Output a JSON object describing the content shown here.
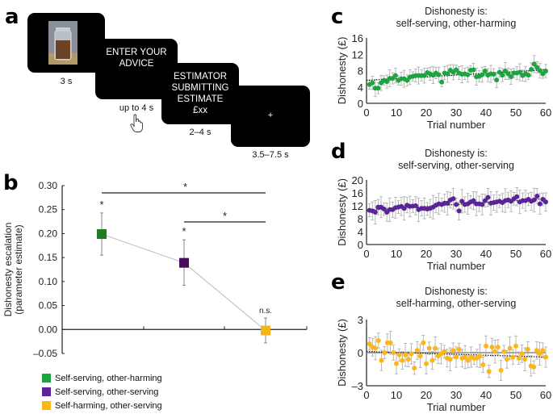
{
  "panel_a": {
    "letter": "a",
    "screens": [
      {
        "name": "jar-image",
        "text_lines": [],
        "duration": "3 s"
      },
      {
        "name": "enter-advice",
        "text_lines": [
          "ENTER YOUR",
          "ADVICE"
        ],
        "duration": "up to 4 s"
      },
      {
        "name": "estimator-submitting",
        "text_lines": [
          "ESTIMATOR",
          "SUBMITTING",
          "ESTIMATE",
          "£xx"
        ],
        "duration": "2–4 s"
      },
      {
        "name": "fixation",
        "text_lines": [
          "+"
        ],
        "duration": "3.5–7.5 s"
      }
    ],
    "icons": [
      "jar-photo-icon",
      "pointing-hand-icon"
    ]
  },
  "chart_data": [
    {
      "panel": "b",
      "type": "scatter",
      "title": "",
      "xlabel": "",
      "ylabel": "Dishonesty escalation (parameter estimate)",
      "ylim": [
        -0.05,
        0.3
      ],
      "yticks": [
        "0.30",
        "0.25",
        "0.20",
        "0.15",
        "0.10",
        "0.05",
        "0.00",
        "–0.05"
      ],
      "ytick_values": [
        0.3,
        0.25,
        0.2,
        0.15,
        0.1,
        0.05,
        0.0,
        -0.05
      ],
      "categories": [
        "Self-serving, other-harming",
        "Self-serving, other-serving",
        "Self-harming, other-serving"
      ],
      "values": [
        0.199,
        0.139,
        -0.002
      ],
      "error_low": [
        0.155,
        0.092,
        -0.028
      ],
      "error_high": [
        0.243,
        0.187,
        0.024
      ],
      "colors": [
        "#1e7d1e",
        "#4b0a5c",
        "#f5b41c"
      ],
      "legend_colors": [
        "#1aa541",
        "#5a2496",
        "#fbb61a"
      ],
      "point_labels": [
        "*",
        "*",
        "n.s."
      ],
      "significance_bars": [
        {
          "from": 0,
          "to": 2,
          "label": "*"
        },
        {
          "from": 1,
          "to": 2,
          "label": "*"
        }
      ],
      "legend": [
        "Self-serving, other-harming",
        "Self-serving, other-serving",
        "Self-harming, other-serving"
      ],
      "legend_position": "bottom-left",
      "grid": false
    },
    {
      "panel": "c",
      "type": "scatter",
      "title": "Dishonesty is:",
      "subtitle": "self-serving, other-harming",
      "xlabel": "Trial number",
      "ylabel": "Dishonesty (£)",
      "xlim": [
        0,
        60
      ],
      "ylim": [
        0,
        16
      ],
      "xticks": [
        "0",
        "10",
        "20",
        "30",
        "40",
        "50",
        "60"
      ],
      "yticks": [
        "16",
        "12",
        "8",
        "4",
        "0"
      ],
      "color": "#1aa541",
      "trend": [
        5.6,
        8.2
      ],
      "error": 1.6,
      "values": [
        4.6,
        5.0,
        3.7,
        3.7,
        5.0,
        5.6,
        5.3,
        6.1,
        6.1,
        6.8,
        5.6,
        6.0,
        6.0,
        5.6,
        6.4,
        6.6,
        6.8,
        6.8,
        6.8,
        6.8,
        7.5,
        7.2,
        6.9,
        7.4,
        7.0,
        5.2,
        7.4,
        7.2,
        8.1,
        7.6,
        8.2,
        7.4,
        7.1,
        7.2,
        7.0,
        8.1,
        8.2,
        6.5,
        6.6,
        7.0,
        7.9,
        6.9,
        7.2,
        7.1,
        5.7,
        7.6,
        6.9,
        7.9,
        7.2,
        6.5,
        7.4,
        7.4,
        7.6,
        6.8,
        7.2,
        6.9,
        8.3,
        9.6,
        8.8,
        8.0,
        7.2,
        7.9
      ]
    },
    {
      "panel": "d",
      "type": "scatter",
      "title": "Dishonesty is:",
      "subtitle": "self-serving, other-serving",
      "xlabel": "Trial number",
      "ylabel": "Dishonesty (£)",
      "xlim": [
        0,
        60
      ],
      "ylim": [
        0,
        20
      ],
      "xticks": [
        "0",
        "10",
        "20",
        "30",
        "40",
        "50",
        "60"
      ],
      "yticks": [
        "20",
        "16",
        "12",
        "8",
        "4",
        "0"
      ],
      "color": "#5a2496",
      "trend": [
        10.6,
        14.2
      ],
      "error": 2.8,
      "values": [
        10.6,
        10.4,
        10.0,
        11.6,
        11.6,
        11.0,
        10.0,
        10.8,
        10.8,
        11.4,
        11.6,
        11.8,
        11.2,
        12.2,
        11.8,
        11.9,
        12.0,
        10.8,
        11.2,
        11.2,
        11.0,
        11.2,
        11.6,
        12.2,
        12.6,
        12.4,
        12.8,
        12.8,
        13.8,
        14.2,
        12.4,
        10.4,
        13.4,
        12.4,
        12.6,
        13.2,
        13.6,
        12.6,
        12.6,
        12.4,
        13.6,
        14.6,
        12.8,
        13.0,
        13.2,
        13.4,
        13.0,
        13.6,
        13.8,
        13.4,
        14.2,
        14.8,
        13.2,
        13.6,
        13.6,
        14.0,
        13.4,
        13.8,
        15.0,
        12.6,
        14.0,
        13.2
      ]
    },
    {
      "panel": "e",
      "type": "scatter",
      "title": "Dishonesty is:",
      "subtitle": "self-harming, other-serving",
      "xlabel": "Trial number",
      "ylabel": "Dishonesty (£)",
      "xlim": [
        0,
        60
      ],
      "ylim": [
        -3,
        3
      ],
      "xticks": [
        "0",
        "10",
        "20",
        "30",
        "40",
        "50",
        "60"
      ],
      "yticks": [
        "3",
        "0",
        "–3"
      ],
      "color": "#fbb61a",
      "trend": [
        0.1,
        -0.4
      ],
      "zero_line": true,
      "error": 0.8,
      "values": [
        0.8,
        0.5,
        0.4,
        1.1,
        -0.7,
        0.0,
        0.9,
        0.9,
        0.0,
        -1.0,
        -0.2,
        -0.7,
        -0.2,
        -0.6,
        -0.1,
        -1.4,
        0.2,
        -0.3,
        0.9,
        -1.0,
        0.4,
        -0.7,
        0.4,
        -0.3,
        -0.1,
        0.1,
        -0.5,
        -0.6,
        0.2,
        -0.4,
        0.3,
        -0.5,
        -0.4,
        -0.7,
        -0.4,
        -0.5,
        -0.5,
        -0.3,
        -1.1,
        0.6,
        -1.7,
        0.5,
        0.1,
        0.5,
        -1.6,
        0.1,
        -0.6,
        0.4,
        -0.4,
        0.6,
        -0.5,
        -0.1,
        -0.6,
        0.3,
        -1.2,
        -1.3,
        0.2,
        -0.1,
        0.2,
        -0.4
      ]
    }
  ]
}
